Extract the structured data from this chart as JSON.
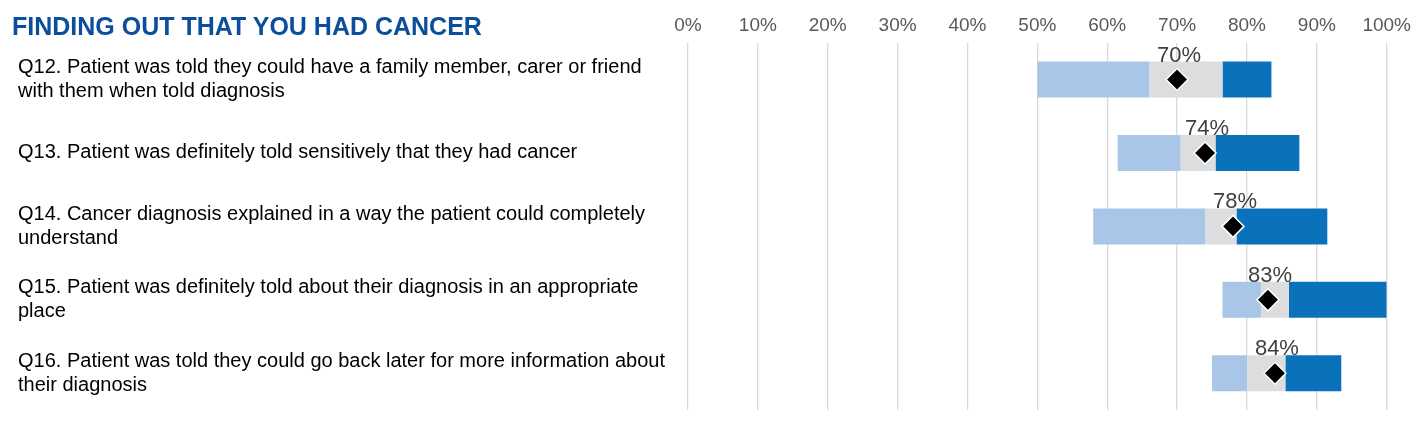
{
  "chart_data": {
    "type": "bar",
    "orientation": "horizontal",
    "title": "FINDING OUT THAT YOU HAD CANCER",
    "categories": [
      "Q12. Patient was told they could have a family member, carer or friend with them when told diagnosis",
      "Q13. Patient was definitely told sensitively that they had cancer",
      "Q14. Cancer diagnosis explained in a way the patient could completely understand",
      "Q15. Patient was definitely told about their diagnosis in an appropriate place",
      "Q16. Patient was told they could go back later for more information about their diagnosis"
    ],
    "series": [
      {
        "color": "#a9c6e8",
        "base": [
          50,
          61.5,
          58,
          76.5,
          75
        ],
        "values": [
          16,
          9,
          16,
          5.5,
          5
        ]
      },
      {
        "color": "#dcdddf",
        "base": [
          66,
          70.5,
          74,
          82,
          80
        ],
        "values": [
          10.5,
          5,
          4.5,
          4,
          5.5
        ]
      },
      {
        "color": "#0a72bb",
        "base": [
          76.5,
          75.5,
          78.5,
          86,
          85.5
        ],
        "values": [
          7,
          12,
          13,
          14,
          8
        ]
      },
      {
        "type": "scatter",
        "color": "#000000",
        "marker": "diamond",
        "x": [
          "Q12. Patient was told they could have a family member, carer or friend with them when told diagnosis",
          "Q13. Patient was definitely told sensitively that they had cancer",
          "Q14. Cancer diagnosis explained in a way the patient could completely understand",
          "Q15. Patient was definitely told about their diagnosis in an appropriate place",
          "Q16. Patient was told they could go back later for more information about their diagnosis"
        ],
        "values": [
          70,
          74,
          78,
          83,
          84
        ],
        "value_labels": [
          "70%",
          "74%",
          "78%",
          "83%",
          "84%"
        ]
      }
    ],
    "xlim": [
      0,
      100
    ],
    "xticks": [
      {
        "value": 0,
        "label": "0%"
      },
      {
        "value": 10,
        "label": "10%"
      },
      {
        "value": 20,
        "label": "20%"
      },
      {
        "value": 30,
        "label": "30%"
      },
      {
        "value": 40,
        "label": "40%"
      },
      {
        "value": 50,
        "label": "50%"
      },
      {
        "value": 60,
        "label": "60%"
      },
      {
        "value": 70,
        "label": "70%"
      },
      {
        "value": 80,
        "label": "80%"
      },
      {
        "value": 90,
        "label": "90%"
      },
      {
        "value": 100,
        "label": "100%"
      }
    ],
    "grid": "x",
    "legend": false
  }
}
